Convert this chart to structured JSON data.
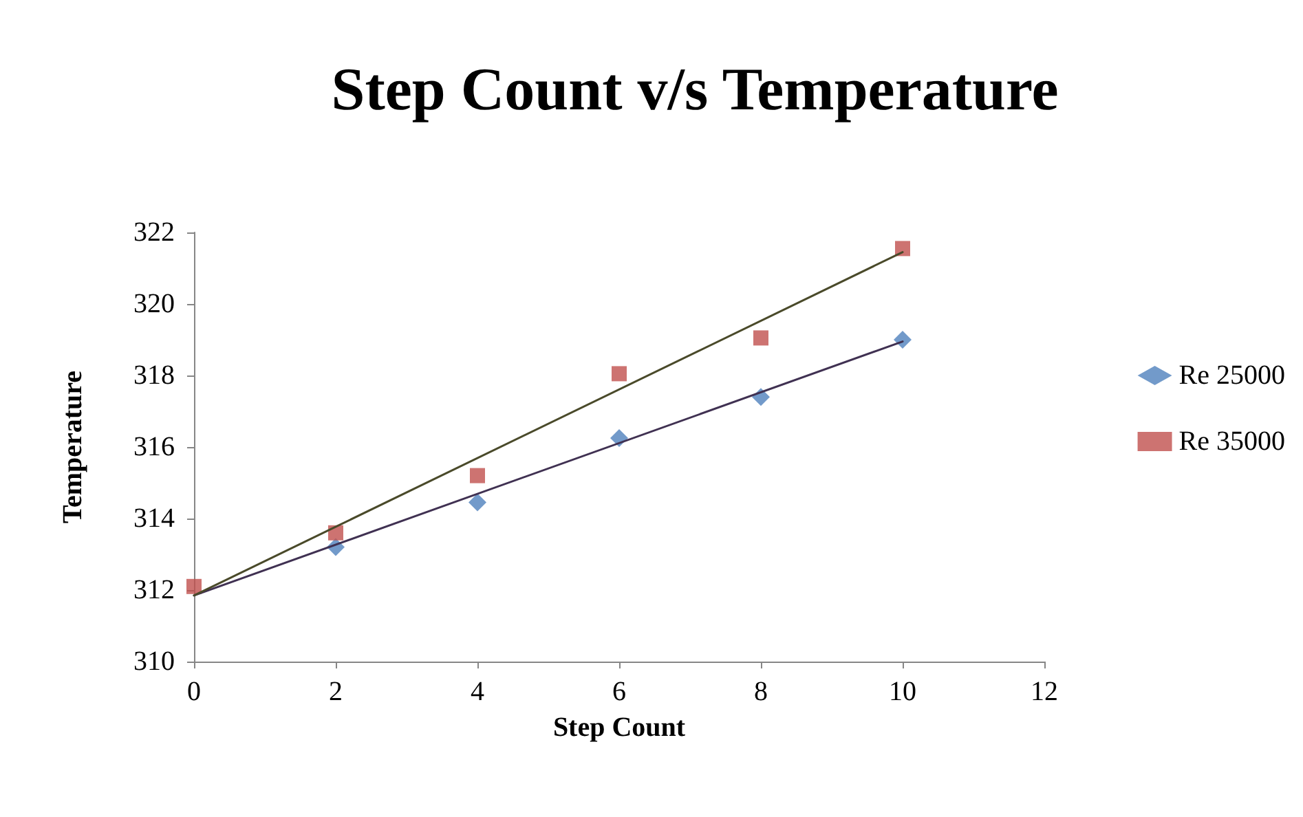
{
  "chart_data": {
    "type": "scatter",
    "title": "Step Count v/s Temperature",
    "xlabel": "Step Count",
    "ylabel": "Temperature",
    "xlim": [
      0,
      12
    ],
    "xticks": [
      0,
      2,
      4,
      6,
      8,
      10,
      12
    ],
    "ylim": [
      310,
      322
    ],
    "yticks": [
      310,
      312,
      314,
      316,
      318,
      320,
      322
    ],
    "grid": false,
    "legend": "right",
    "series": [
      {
        "name": "Re 25000",
        "color": "#4f81bd",
        "marker": "diamond",
        "x": [
          2,
          4,
          6,
          8,
          10
        ],
        "values": [
          313.2,
          314.45,
          316.25,
          317.4,
          319.0
        ]
      },
      {
        "name": "Re 35000",
        "color": "#c0504d",
        "marker": "square",
        "x": [
          0,
          2,
          4,
          6,
          8,
          10
        ],
        "values": [
          312.1,
          313.6,
          315.2,
          318.05,
          319.05,
          321.55
        ]
      },
      {
        "type": "line",
        "color": "#403152",
        "marker": "none",
        "x": [
          0,
          10
        ],
        "values": [
          311.85,
          318.95
        ]
      },
      {
        "type": "line",
        "color": "#4a4a2a",
        "marker": "none",
        "x": [
          0,
          10
        ],
        "values": [
          311.85,
          321.45
        ]
      }
    ]
  }
}
